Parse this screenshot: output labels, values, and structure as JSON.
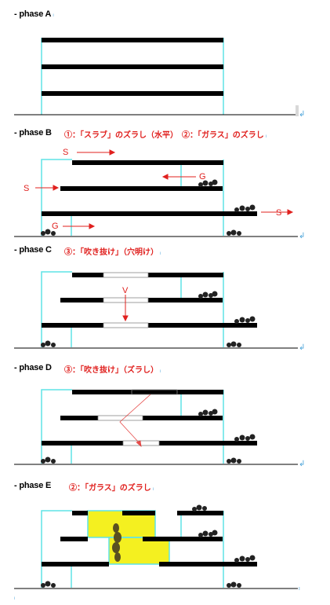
{
  "phases": [
    {
      "label": "- phase A",
      "note": ""
    },
    {
      "label": "- phase B",
      "note": "①：「スラブ」のズラし（水平）　②：「ガラス」のズラし"
    },
    {
      "label": "- phase C",
      "note": "③：「吹き抜け」（穴明け）"
    },
    {
      "label": "- phase D",
      "note": "③：「吹き抜け」（ズラし）"
    },
    {
      "label": "- phase E",
      "note": "②：「ガラス」のズラし"
    }
  ],
  "arrow_labels": {
    "slab": "S",
    "glass": "G",
    "void": "V"
  },
  "marks": {
    "paragraph": "↲",
    "anchor": "ₗ"
  },
  "colors": {
    "slab": "#000000",
    "glass": "#5fe3e6",
    "arrow": "#e0201e",
    "void_fill": "#f4f020"
  }
}
